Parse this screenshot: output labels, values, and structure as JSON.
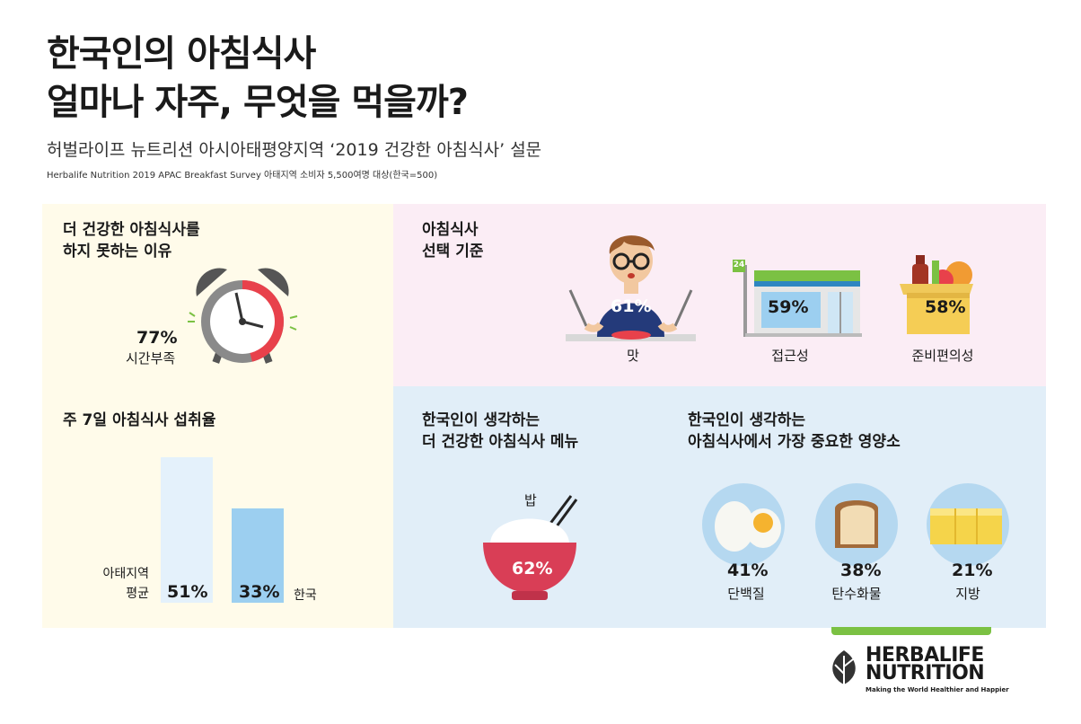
{
  "header": {
    "title_line1": "한국인의 아침식사",
    "title_line2": "얼마나 자주, 무엇을 먹을까?",
    "subtitle": "허벌라이프 뉴트리션 아시아태평양지역 ‘2019 건강한 아침식사’ 설문",
    "source_note": "Herbalife Nutrition 2019 APAC Breakfast Survey 아태지역 소비자 5,500여명 대상(한국=500)"
  },
  "reason": {
    "heading_line1": "더 건강한 아침식사를",
    "heading_line2": "하지 못하는 이유",
    "value": "77%",
    "label": "시간부족",
    "fraction": 0.77
  },
  "criteria": {
    "heading_line1": "아침식사",
    "heading_line2": "선택 기준",
    "items": [
      {
        "value": "61%",
        "label": "맛"
      },
      {
        "value": "59%",
        "label": "접근성"
      },
      {
        "value": "58%",
        "label": "준비편의성"
      }
    ],
    "store_sign": "24"
  },
  "weekly": {
    "heading": "주 7일 아침식사 섭취율",
    "apac_label_line1": "아태지역",
    "apac_label_line2": "평균",
    "apac_value": "51%",
    "korea_value": "33%",
    "korea_label": "한국"
  },
  "menu": {
    "heading_line1": "한국인이 생각하는",
    "heading_line2": "더 건강한 아침식사 메뉴",
    "item_label": "밥",
    "item_value": "62%"
  },
  "nutrients": {
    "heading_line1": "한국인이 생각하는",
    "heading_line2": "아침식사에서 가장 중요한 영양소",
    "items": [
      {
        "value": "41%",
        "label": "단백질"
      },
      {
        "value": "38%",
        "label": "탄수화물"
      },
      {
        "value": "21%",
        "label": "지방"
      }
    ]
  },
  "brand": {
    "line1": "HERBALIFE",
    "line2": "NUTRITION",
    "tagline": "Making the World Healthier and Happier"
  },
  "colors": {
    "yellow_bg": "#fffbea",
    "pink_bg": "#fbedf5",
    "blue_bg": "#e1eef8",
    "clock_red": "#e8414b",
    "bar_light": "#e4f1fb",
    "bar_blue": "#9ccff0",
    "bowl_red": "#d93e56",
    "brand_green": "#7bc143"
  }
}
